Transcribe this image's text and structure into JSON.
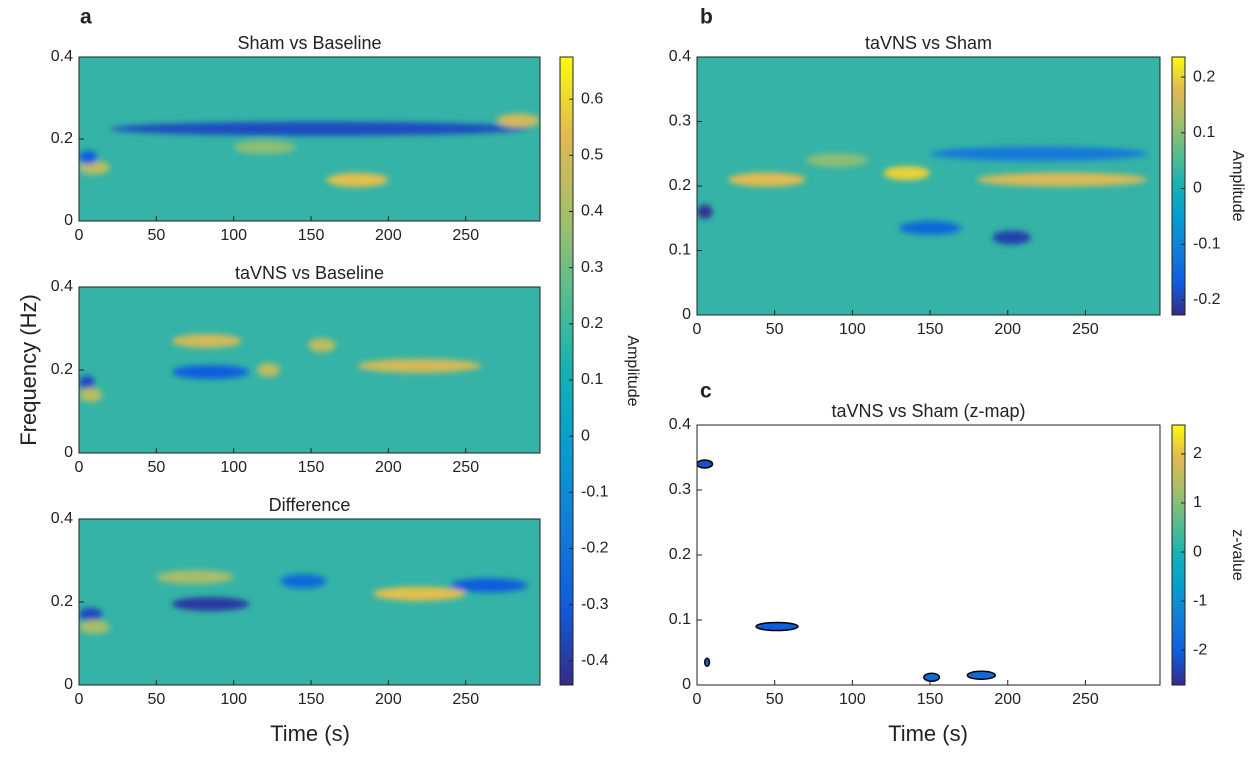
{
  "chart_data": [
    {
      "type": "heatmap",
      "panel": "a",
      "title": "Sham vs Baseline",
      "xlim": [
        0,
        298
      ],
      "xticks": [
        0,
        50,
        100,
        150,
        200,
        250
      ],
      "ylim": [
        0,
        0.4
      ],
      "yticks": [
        0,
        0.2,
        0.4
      ],
      "colorbar": {
        "label": "Amplitude",
        "clim": [
          -0.443,
          0.675
        ],
        "ticks": [
          -0.4,
          -0.3,
          -0.2,
          -0.1,
          0,
          0.1,
          0.2,
          0.3,
          0.4,
          0.5,
          0.6
        ]
      },
      "features": [
        {
          "x": [
            20,
            290
          ],
          "y": 0.225,
          "value": -0.35
        },
        {
          "x": [
            160,
            200
          ],
          "y": 0.1,
          "value": 0.55
        },
        {
          "x": [
            270,
            298
          ],
          "y": 0.245,
          "value": 0.5
        },
        {
          "x": [
            0,
            20
          ],
          "y": 0.13,
          "value": 0.45
        },
        {
          "x": [
            0,
            12
          ],
          "y": 0.155,
          "value": -0.3
        },
        {
          "x": [
            100,
            140
          ],
          "y": 0.18,
          "value": 0.35
        }
      ]
    },
    {
      "type": "heatmap",
      "title": "taVNS vs Baseline",
      "ylabel": "Frequency (Hz)",
      "xlim": [
        0,
        298
      ],
      "xticks": [
        0,
        50,
        100,
        150,
        200,
        250
      ],
      "ylim": [
        0,
        0.4
      ],
      "yticks": [
        0,
        0.2,
        0.4
      ],
      "features": [
        {
          "x": [
            60,
            105
          ],
          "y": 0.27,
          "value": 0.5
        },
        {
          "x": [
            148,
            166
          ],
          "y": 0.26,
          "value": 0.45
        },
        {
          "x": [
            180,
            260
          ],
          "y": 0.21,
          "value": 0.5
        },
        {
          "x": [
            60,
            110
          ],
          "y": 0.195,
          "value": -0.3
        },
        {
          "x": [
            0,
            10
          ],
          "y": 0.17,
          "value": -0.35
        },
        {
          "x": [
            0,
            15
          ],
          "y": 0.14,
          "value": 0.45
        },
        {
          "x": [
            115,
            130
          ],
          "y": 0.2,
          "value": 0.45
        }
      ]
    },
    {
      "type": "heatmap",
      "title": "Difference",
      "xlabel": "Time (s)",
      "xlim": [
        0,
        298
      ],
      "xticks": [
        0,
        50,
        100,
        150,
        200,
        250
      ],
      "ylim": [
        0,
        0.4
      ],
      "yticks": [
        0,
        0.2,
        0.4
      ],
      "features": [
        {
          "x": [
            190,
            250
          ],
          "y": 0.22,
          "value": 0.55
        },
        {
          "x": [
            50,
            100
          ],
          "y": 0.26,
          "value": 0.4
        },
        {
          "x": [
            60,
            110
          ],
          "y": 0.195,
          "value": -0.4
        },
        {
          "x": [
            0,
            15
          ],
          "y": 0.17,
          "value": -0.35
        },
        {
          "x": [
            0,
            20
          ],
          "y": 0.14,
          "value": 0.4
        },
        {
          "x": [
            240,
            290
          ],
          "y": 0.24,
          "value": -0.3
        },
        {
          "x": [
            130,
            160
          ],
          "y": 0.25,
          "value": -0.25
        }
      ]
    },
    {
      "type": "heatmap",
      "panel": "b",
      "title": "taVNS vs Sham",
      "xlim": [
        0,
        298
      ],
      "xticks": [
        0,
        50,
        100,
        150,
        200,
        250
      ],
      "ylim": [
        0,
        0.4
      ],
      "yticks": [
        0,
        0.1,
        0.2,
        0.3,
        0.4
      ],
      "colorbar": {
        "label": "Amplitude",
        "clim": [
          -0.227,
          0.236
        ],
        "ticks": [
          -0.2,
          -0.1,
          0,
          0.1,
          0.2
        ]
      },
      "features": [
        {
          "x": [
            20,
            70
          ],
          "y": 0.21,
          "value": 0.18
        },
        {
          "x": [
            120,
            150
          ],
          "y": 0.22,
          "value": 0.2
        },
        {
          "x": [
            180,
            290
          ],
          "y": 0.21,
          "value": 0.17
        },
        {
          "x": [
            0,
            10
          ],
          "y": 0.16,
          "value": -0.22
        },
        {
          "x": [
            190,
            215
          ],
          "y": 0.12,
          "value": -0.2
        },
        {
          "x": [
            130,
            170
          ],
          "y": 0.135,
          "value": -0.15
        },
        {
          "x": [
            150,
            290
          ],
          "y": 0.25,
          "value": -0.12
        },
        {
          "x": [
            70,
            110
          ],
          "y": 0.24,
          "value": 0.1
        }
      ]
    },
    {
      "type": "contour",
      "panel": "c",
      "title": "taVNS vs Sham (z-map)",
      "xlabel": "Time (s)",
      "xlim": [
        0,
        298
      ],
      "xticks": [
        0,
        50,
        100,
        150,
        200,
        250
      ],
      "ylim": [
        0,
        0.4
      ],
      "yticks": [
        0,
        0.1,
        0.2,
        0.3,
        0.4
      ],
      "colorbar": {
        "label": "z-value",
        "clim": [
          -2.71,
          2.59
        ],
        "ticks": [
          -2,
          -1,
          0,
          1,
          2
        ]
      },
      "features": [
        {
          "x": [
            0,
            10
          ],
          "y": 0.34,
          "value": -2.2
        },
        {
          "x": [
            38,
            65
          ],
          "y": 0.09,
          "value": -2
        },
        {
          "x": [
            146,
            156
          ],
          "y": 0.012,
          "value": -1.8
        },
        {
          "x": [
            174,
            192
          ],
          "y": 0.015,
          "value": -1.8
        },
        {
          "x": [
            5,
            8
          ],
          "y": 0.035,
          "value": -1.9
        }
      ]
    }
  ]
}
